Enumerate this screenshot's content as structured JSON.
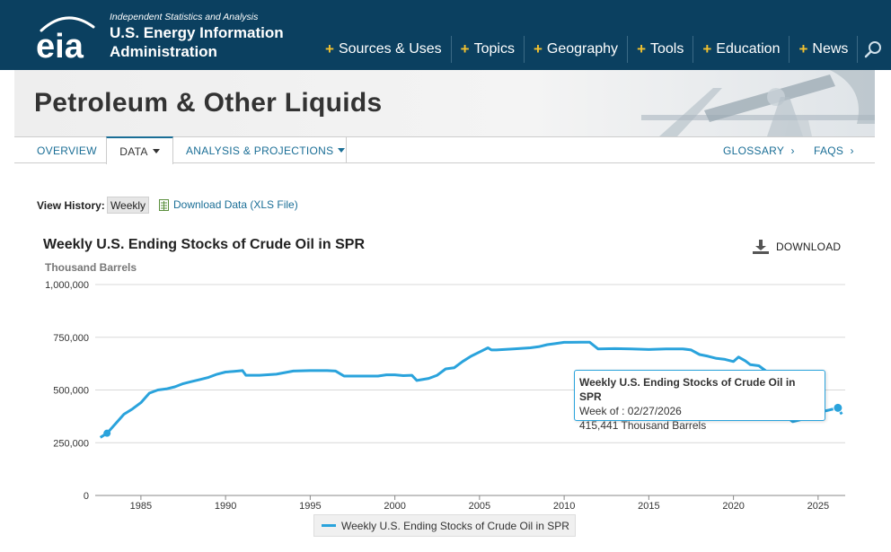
{
  "header": {
    "tagline": "Independent Statistics and Analysis",
    "org_line1": "U.S. Energy Information",
    "org_line2": "Administration",
    "nav": [
      "Sources & Uses",
      "Topics",
      "Geography",
      "Tools",
      "Education",
      "News"
    ],
    "icons": {
      "logo": "eia-logo",
      "search": "search-icon"
    }
  },
  "hero": {
    "title": "Petroleum & Other Liquids"
  },
  "subnav": {
    "overview": "OVERVIEW",
    "data": "DATA",
    "analysis": "ANALYSIS & PROJECTIONS",
    "glossary": "GLOSSARY",
    "faqs": "FAQS",
    "chevron": "›"
  },
  "view_history": {
    "label": "View History:",
    "selected": "Weekly",
    "download_data": "Download Data (XLS File)"
  },
  "chart_header": {
    "title": "Weekly U.S. Ending Stocks of Crude Oil in SPR",
    "unit": "Thousand Barrels",
    "download": "DOWNLOAD"
  },
  "tooltip": {
    "title": "Weekly U.S. Ending Stocks of Crude Oil in SPR",
    "week": "Week of : 02/27/2026",
    "value": "415,441 Thousand Barrels"
  },
  "colors": {
    "accent": "#2aa3dc",
    "header_bg": "#0b4060",
    "plus": "#f2c230",
    "link": "#1a6e96"
  },
  "chart_data": {
    "type": "line",
    "title": "Weekly U.S. Ending Stocks of Crude Oil in SPR",
    "ylabel": "Thousand Barrels",
    "xlabel": "",
    "ylim": [
      0,
      1000000
    ],
    "xlim": [
      1982.3,
      2026.6
    ],
    "y_ticks": [
      0,
      250000,
      500000,
      750000,
      1000000
    ],
    "y_tick_labels": [
      "0",
      "250,000",
      "500,000",
      "750,000",
      "1,000,000"
    ],
    "x_ticks": [
      1985,
      1990,
      1995,
      2000,
      2005,
      2010,
      2015,
      2020,
      2025
    ],
    "grid": true,
    "legend": "bottom-center",
    "series": [
      {
        "name": "Weekly U.S. Ending Stocks of Crude Oil in SPR",
        "color": "#2aa3dc",
        "x": [
          1982.6,
          1983.0,
          1983.5,
          1984.0,
          1984.5,
          1985.0,
          1985.5,
          1986.0,
          1986.5,
          1987.0,
          1987.5,
          1988.0,
          1988.5,
          1989.0,
          1989.5,
          1990.0,
          1990.5,
          1991.0,
          1991.2,
          1992.0,
          1993.0,
          1994.0,
          1995.0,
          1996.0,
          1996.5,
          1997.0,
          1998.0,
          1999.0,
          1999.5,
          2000.0,
          2000.5,
          2001.0,
          2001.3,
          2002.0,
          2002.5,
          2003.0,
          2003.5,
          2004.0,
          2004.5,
          2005.0,
          2005.5,
          2005.7,
          2006.0,
          2007.0,
          2008.0,
          2008.5,
          2009.0,
          2009.5,
          2010.0,
          2011.0,
          2011.5,
          2012.0,
          2013.0,
          2014.0,
          2015.0,
          2016.0,
          2017.0,
          2017.5,
          2018.0,
          2018.5,
          2019.0,
          2019.5,
          2020.0,
          2020.3,
          2020.7,
          2021.0,
          2021.5,
          2022.0,
          2022.5,
          2023.0,
          2023.5,
          2024.0,
          2024.5,
          2025.0,
          2025.5,
          2026.17,
          2026.4
        ],
        "values": [
          275000,
          295000,
          340000,
          385000,
          410000,
          440000,
          485000,
          500000,
          505000,
          515000,
          530000,
          540000,
          550000,
          560000,
          575000,
          585000,
          588000,
          592000,
          570000,
          570000,
          575000,
          590000,
          592000,
          592000,
          590000,
          566000,
          566000,
          566000,
          572000,
          572000,
          568000,
          570000,
          545000,
          555000,
          570000,
          600000,
          605000,
          635000,
          660000,
          680000,
          700000,
          690000,
          690000,
          695000,
          700000,
          705000,
          715000,
          720000,
          726000,
          727000,
          727000,
          695000,
          696000,
          695000,
          692000,
          695000,
          695000,
          690000,
          668000,
          660000,
          650000,
          645000,
          635000,
          656000,
          638000,
          620000,
          615000,
          585000,
          470000,
          380000,
          350000,
          360000,
          372000,
          395000,
          402000,
          415441,
          385000
        ]
      }
    ]
  }
}
